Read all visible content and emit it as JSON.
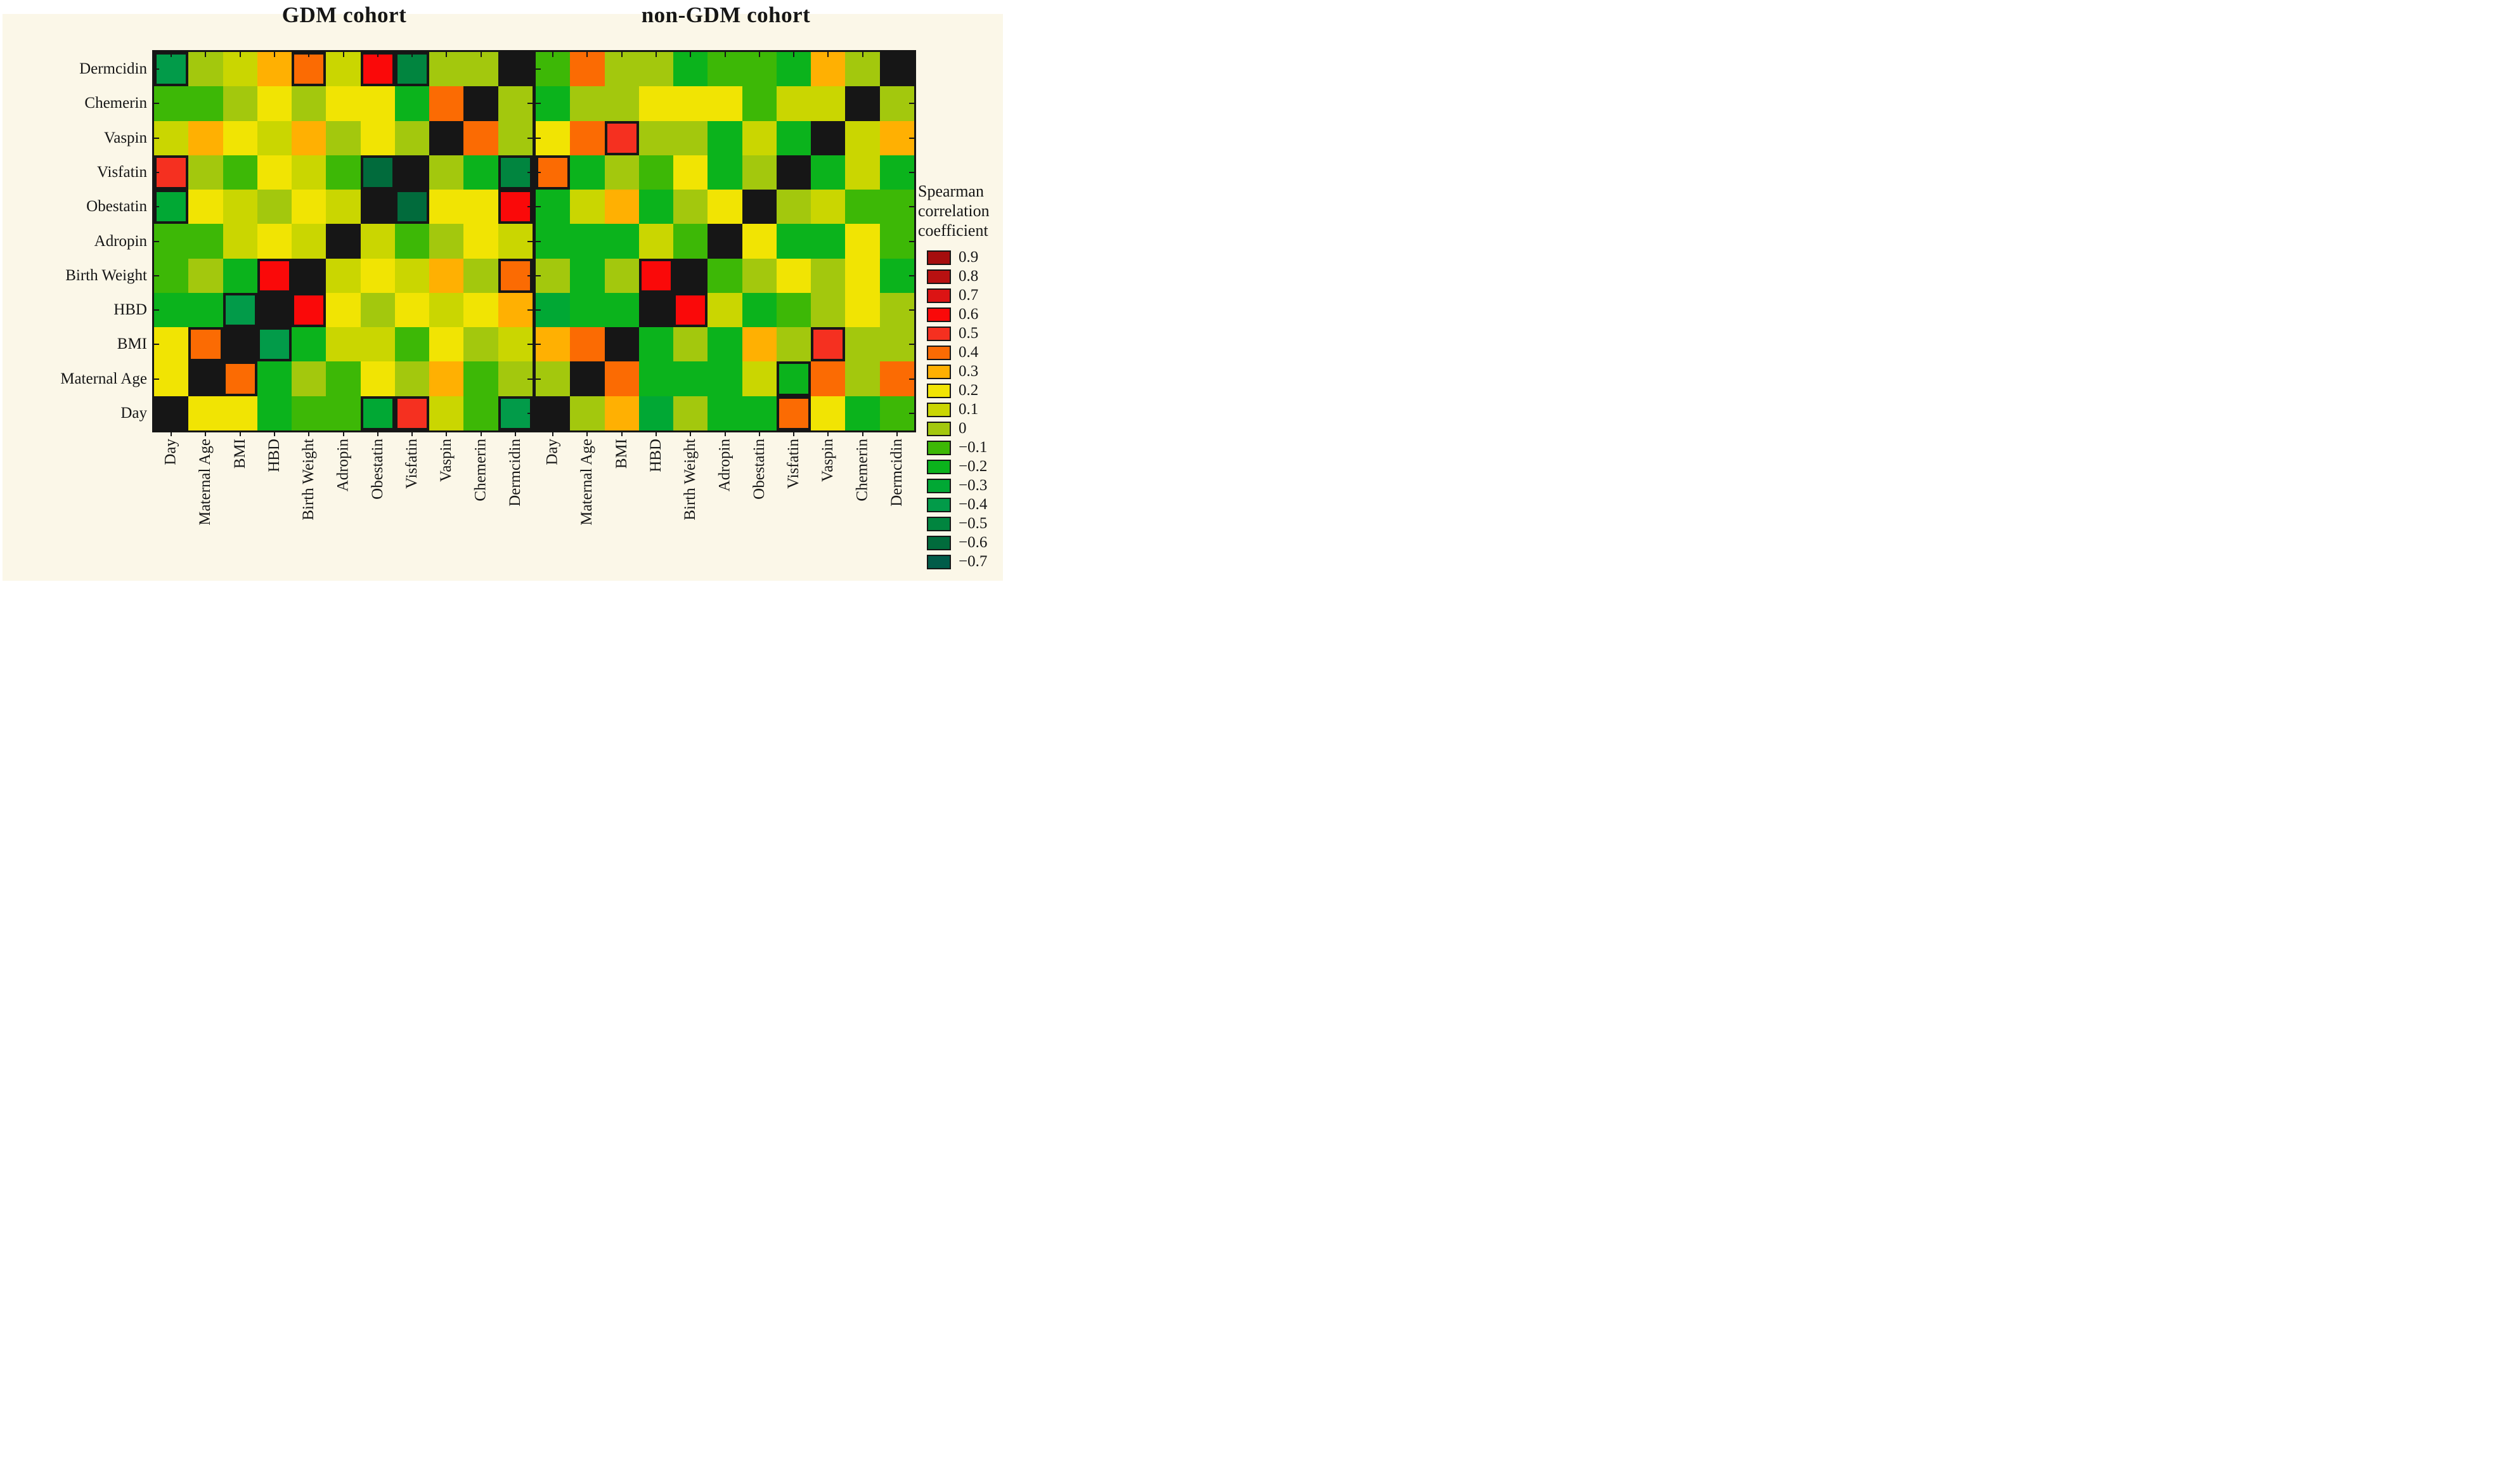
{
  "titles": {
    "left": "GDM cohort",
    "right": "non-GDM cohort"
  },
  "legend": {
    "title_lines": [
      "Spearman",
      "correlation",
      "coefficient"
    ],
    "entries": [
      {
        "label": "0.9",
        "value": 0.9,
        "color": "#A50E0E"
      },
      {
        "label": "0.8",
        "value": 0.8,
        "color": "#B81111"
      },
      {
        "label": "0.7",
        "value": 0.7,
        "color": "#DC1414"
      },
      {
        "label": "0.6",
        "value": 0.6,
        "color": "#FA0909"
      },
      {
        "label": "0.5",
        "value": 0.5,
        "color": "#F53020"
      },
      {
        "label": "0.4",
        "value": 0.4,
        "color": "#FB6B03"
      },
      {
        "label": "0.3",
        "value": 0.3,
        "color": "#FFB002"
      },
      {
        "label": "0.2",
        "value": 0.2,
        "color": "#F1E403"
      },
      {
        "label": "0.1",
        "value": 0.1,
        "color": "#CAD601"
      },
      {
        "label": "0",
        "value": 0,
        "color": "#A3C80D"
      },
      {
        "label": "−0.1",
        "value": -0.1,
        "color": "#3DB806"
      },
      {
        "label": "−0.2",
        "value": -0.2,
        "color": "#0BB31C"
      },
      {
        "label": "−0.3",
        "value": -0.3,
        "color": "#01A834"
      },
      {
        "label": "−0.4",
        "value": -0.4,
        "color": "#029B49"
      },
      {
        "label": "−0.5",
        "value": -0.5,
        "color": "#01853F"
      },
      {
        "label": "−0.6",
        "value": -0.6,
        "color": "#016B3C"
      },
      {
        "label": "−0.7",
        "value": -0.7,
        "color": "#015C49"
      }
    ]
  },
  "chart_data": {
    "type": "heatmap",
    "x_categories": [
      "Day",
      "Maternal Age",
      "BMI",
      "HBD",
      "Birth Weight",
      "Adropin",
      "Obestatin",
      "Visfatin",
      "Vaspin",
      "Chemerin",
      "Dermcidin"
    ],
    "y_categories": [
      "Dermcidin",
      "Chemerin",
      "Vaspin",
      "Visfatin",
      "Obestatin",
      "Adropin",
      "Birth Weight",
      "HBD",
      "BMI",
      "Maternal Age",
      "Day"
    ],
    "diagonal_color": "#161616",
    "background": "#FBF7E8",
    "panels": [
      {
        "title": "GDM cohort",
        "values": [
          [
            -0.4,
            0,
            0.1,
            0.3,
            0.4,
            0.1,
            0.6,
            -0.5,
            0,
            0,
            null
          ],
          [
            -0.1,
            -0.1,
            0,
            0.2,
            0,
            0.2,
            0.2,
            -0.2,
            0.4,
            null,
            0
          ],
          [
            0.1,
            0.3,
            0.2,
            0.1,
            0.3,
            0,
            0.2,
            0,
            null,
            0.4,
            0
          ],
          [
            0.5,
            0,
            -0.1,
            0.2,
            0.1,
            -0.1,
            -0.6,
            null,
            0,
            -0.2,
            -0.5
          ],
          [
            -0.3,
            0.2,
            0.1,
            0,
            0.2,
            0.1,
            null,
            -0.6,
            0.2,
            0.2,
            0.6
          ],
          [
            -0.1,
            -0.1,
            0.1,
            0.2,
            0.1,
            null,
            0.1,
            -0.1,
            0,
            0.2,
            0.1
          ],
          [
            -0.1,
            0,
            -0.2,
            0.6,
            null,
            0.1,
            0.2,
            0.1,
            0.3,
            0,
            0.4
          ],
          [
            -0.2,
            -0.2,
            -0.4,
            null,
            0.6,
            0.2,
            0,
            0.2,
            0.1,
            0.2,
            0.3
          ],
          [
            0.2,
            0.4,
            null,
            -0.4,
            -0.2,
            0.1,
            0.1,
            -0.1,
            0.2,
            0,
            0.1
          ],
          [
            0.2,
            null,
            0.4,
            -0.2,
            0,
            -0.1,
            0.2,
            0,
            0.3,
            -0.1,
            0
          ],
          [
            null,
            0.2,
            0.2,
            -0.2,
            -0.1,
            -0.1,
            -0.3,
            0.5,
            0.1,
            -0.1,
            -0.4
          ]
        ],
        "significant": [
          [
            1,
            0,
            0,
            0,
            1,
            0,
            1,
            1,
            0,
            0,
            0
          ],
          [
            0,
            0,
            0,
            0,
            0,
            0,
            0,
            0,
            0,
            0,
            0
          ],
          [
            0,
            0,
            0,
            0,
            0,
            0,
            0,
            0,
            0,
            0,
            0
          ],
          [
            1,
            0,
            0,
            0,
            0,
            0,
            1,
            0,
            0,
            0,
            1
          ],
          [
            1,
            0,
            0,
            0,
            0,
            0,
            0,
            1,
            0,
            0,
            1
          ],
          [
            0,
            0,
            0,
            0,
            0,
            0,
            0,
            0,
            0,
            0,
            0
          ],
          [
            0,
            0,
            0,
            1,
            0,
            0,
            0,
            0,
            0,
            0,
            1
          ],
          [
            0,
            0,
            1,
            0,
            1,
            0,
            0,
            0,
            0,
            0,
            0
          ],
          [
            0,
            1,
            0,
            1,
            0,
            0,
            0,
            0,
            0,
            0,
            0
          ],
          [
            0,
            0,
            1,
            0,
            0,
            0,
            0,
            0,
            0,
            0,
            0
          ],
          [
            0,
            0,
            0,
            0,
            0,
            0,
            1,
            1,
            0,
            0,
            1
          ]
        ]
      },
      {
        "title": "non-GDM cohort",
        "values": [
          [
            -0.1,
            0.4,
            0,
            0,
            -0.2,
            -0.1,
            -0.1,
            -0.2,
            0.3,
            0,
            null
          ],
          [
            -0.2,
            0,
            0,
            0.2,
            0.2,
            0.2,
            -0.1,
            0.1,
            0.1,
            null,
            0
          ],
          [
            0.2,
            0.4,
            0.5,
            0,
            0,
            -0.2,
            0.1,
            -0.2,
            null,
            0.1,
            0.3
          ],
          [
            0.4,
            -0.2,
            0,
            -0.1,
            0.2,
            -0.2,
            0,
            null,
            -0.2,
            0.1,
            -0.2
          ],
          [
            -0.2,
            0.1,
            0.3,
            -0.2,
            0,
            0.2,
            null,
            0,
            0.1,
            -0.1,
            -0.1
          ],
          [
            -0.2,
            -0.2,
            -0.2,
            0.1,
            -0.1,
            null,
            0.2,
            -0.2,
            -0.2,
            0.2,
            -0.1
          ],
          [
            0,
            -0.2,
            0,
            0.6,
            null,
            -0.1,
            0,
            0.2,
            0,
            0.2,
            -0.2
          ],
          [
            -0.3,
            -0.2,
            -0.2,
            null,
            0.6,
            0.1,
            -0.2,
            -0.1,
            0,
            0.2,
            0
          ],
          [
            0.3,
            0.4,
            null,
            -0.2,
            0,
            -0.2,
            0.3,
            0,
            0.5,
            0,
            0
          ],
          [
            0,
            null,
            0.4,
            -0.2,
            -0.2,
            -0.2,
            0.1,
            -0.2,
            0.4,
            0,
            0.4
          ],
          [
            null,
            0,
            0.3,
            -0.3,
            0,
            -0.2,
            -0.2,
            0.4,
            0.2,
            -0.2,
            -0.1
          ]
        ],
        "significant": [
          [
            0,
            0,
            0,
            0,
            0,
            0,
            0,
            0,
            0,
            0,
            0
          ],
          [
            0,
            0,
            0,
            0,
            0,
            0,
            0,
            0,
            0,
            0,
            0
          ],
          [
            0,
            0,
            1,
            0,
            0,
            0,
            0,
            0,
            0,
            0,
            0
          ],
          [
            1,
            0,
            0,
            0,
            0,
            0,
            0,
            0,
            0,
            0,
            0
          ],
          [
            0,
            0,
            0,
            0,
            0,
            0,
            0,
            0,
            0,
            0,
            0
          ],
          [
            0,
            0,
            0,
            0,
            0,
            0,
            0,
            0,
            0,
            0,
            0
          ],
          [
            0,
            0,
            0,
            1,
            0,
            0,
            0,
            0,
            0,
            0,
            0
          ],
          [
            0,
            0,
            0,
            0,
            1,
            0,
            0,
            0,
            0,
            0,
            0
          ],
          [
            0,
            0,
            0,
            0,
            0,
            0,
            0,
            0,
            1,
            0,
            0
          ],
          [
            0,
            0,
            0,
            0,
            0,
            0,
            0,
            1,
            0,
            0,
            0
          ],
          [
            0,
            0,
            0,
            0,
            0,
            0,
            0,
            1,
            0,
            0,
            0
          ]
        ]
      }
    ]
  }
}
